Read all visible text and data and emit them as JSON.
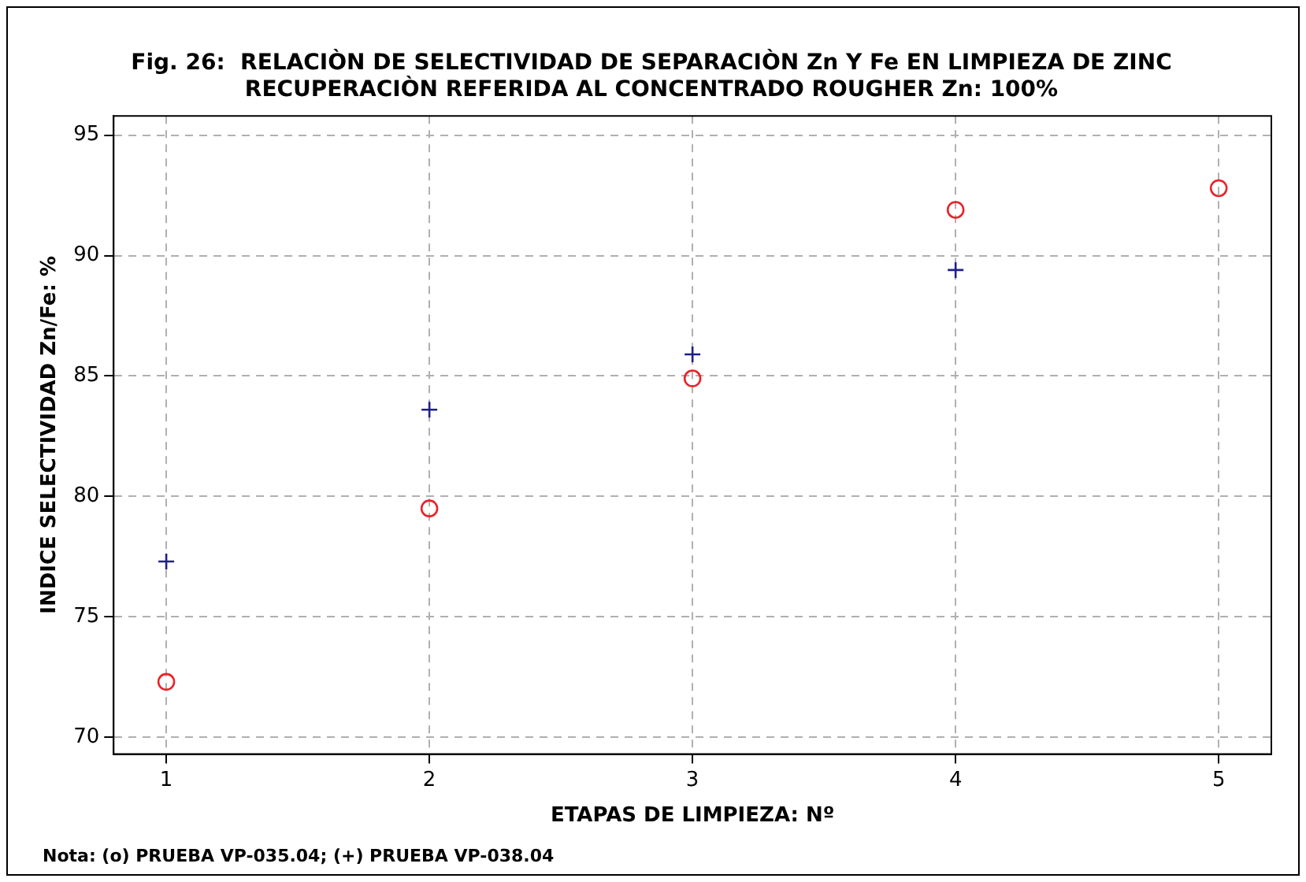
{
  "chart_data": {
    "type": "scatter",
    "title": "Fig. 26:  RELACIÒN DE SELECTIVIDAD DE SEPARACIÒN Zn Y Fe EN LIMPIEZA DE ZINC",
    "subtitle": "RECUPERACIÒN REFERIDA AL CONCENTRADO ROUGHER Zn: 100%",
    "xlabel": "ETAPAS DE LIMPIEZA: Nº",
    "ylabel": "INDICE SELECTIVIDAD Zn/Fe: %",
    "annotations": [
      "Nota: (o) PRUEBA VP-035.04; (+) PRUEBA VP-038.04"
    ],
    "series": [
      {
        "color": "#e8242a",
        "marker": "circle",
        "x": [
          1,
          2,
          3,
          4,
          5
        ],
        "values": [
          72.3,
          79.5,
          84.9,
          91.9,
          92.8
        ]
      },
      {
        "color": "#1f1f8c",
        "marker": "cross",
        "x": [
          1,
          2,
          3,
          4
        ],
        "values": [
          77.3,
          83.6,
          85.9,
          89.4
        ]
      }
    ],
    "xlim": [
      0.8,
      5.2
    ],
    "xticks": [
      1,
      2,
      3,
      4,
      5
    ],
    "ylim": [
      69.3,
      95.8
    ],
    "yticks": [
      70,
      75,
      80,
      85,
      90,
      95
    ],
    "grid": true,
    "legend": false
  }
}
